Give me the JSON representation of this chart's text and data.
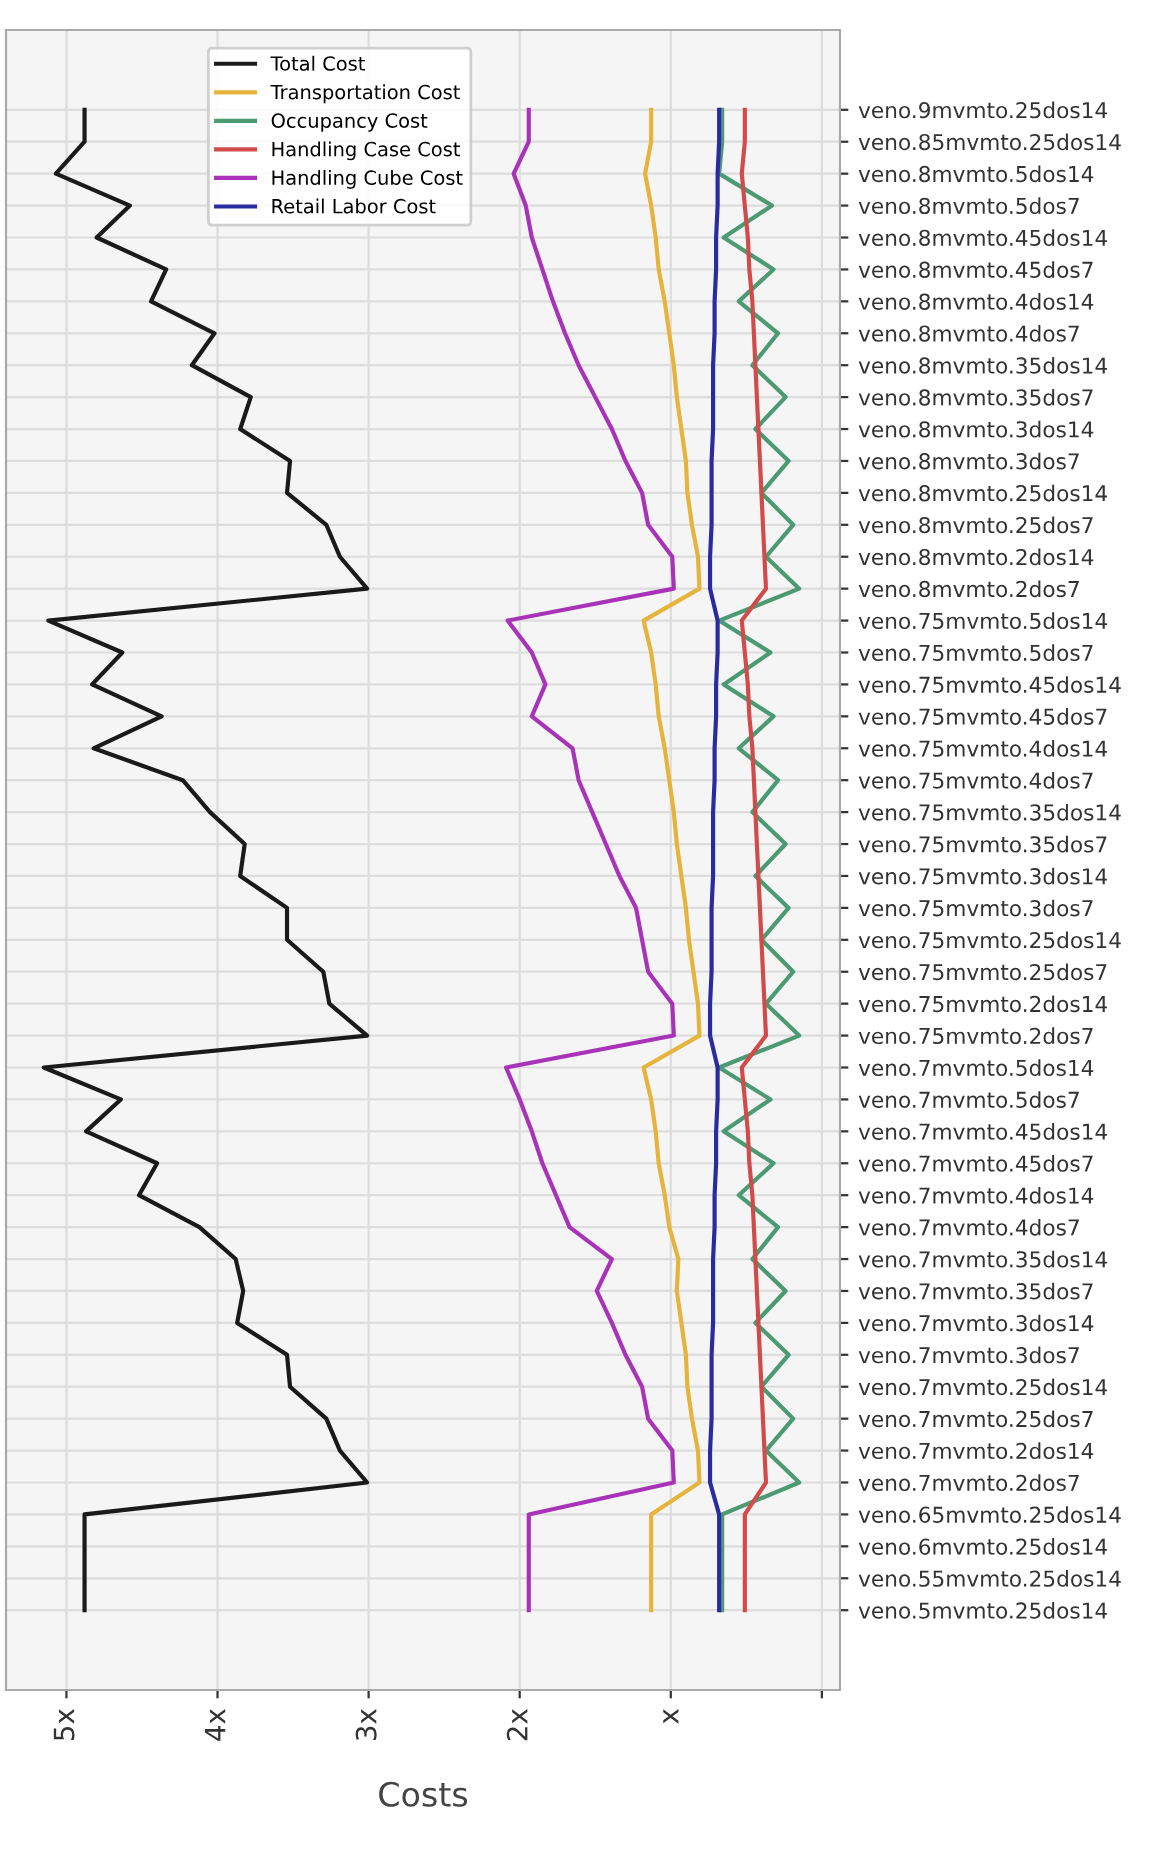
{
  "chart_data": {
    "type": "line",
    "orientation": "horizontal",
    "xlabel": "Costs",
    "categories": [
      "veno.9mvmto.25dos14",
      "veno.85mvmto.25dos14",
      "veno.8mvmto.5dos14",
      "veno.8mvmto.5dos7",
      "veno.8mvmto.45dos14",
      "veno.8mvmto.45dos7",
      "veno.8mvmto.4dos14",
      "veno.8mvmto.4dos7",
      "veno.8mvmto.35dos14",
      "veno.8mvmto.35dos7",
      "veno.8mvmto.3dos14",
      "veno.8mvmto.3dos7",
      "veno.8mvmto.25dos14",
      "veno.8mvmto.25dos7",
      "veno.8mvmto.2dos14",
      "veno.8mvmto.2dos7",
      "veno.75mvmto.5dos14",
      "veno.75mvmto.5dos7",
      "veno.75mvmto.45dos14",
      "veno.75mvmto.45dos7",
      "veno.75mvmto.4dos14",
      "veno.75mvmto.4dos7",
      "veno.75mvmto.35dos14",
      "veno.75mvmto.35dos7",
      "veno.75mvmto.3dos14",
      "veno.75mvmto.3dos7",
      "veno.75mvmto.25dos14",
      "veno.75mvmto.25dos7",
      "veno.75mvmto.2dos14",
      "veno.75mvmto.2dos7",
      "veno.7mvmto.5dos14",
      "veno.7mvmto.5dos7",
      "veno.7mvmto.45dos14",
      "veno.7mvmto.45dos7",
      "veno.7mvmto.4dos14",
      "veno.7mvmto.4dos7",
      "veno.7mvmto.35dos14",
      "veno.7mvmto.35dos7",
      "veno.7mvmto.3dos14",
      "veno.7mvmto.3dos7",
      "veno.7mvmto.25dos14",
      "veno.7mvmto.25dos7",
      "veno.7mvmto.2dos14",
      "veno.7mvmto.2dos7",
      "veno.65mvmto.25dos14",
      "veno.6mvmto.25dos14",
      "veno.55mvmto.25dos14",
      "veno.5mvmto.25dos14"
    ],
    "series": [
      {
        "name": "Total Cost",
        "color": "#1a1a1a",
        "values": [
          4.88,
          4.88,
          5.07,
          4.58,
          4.8,
          4.34,
          4.44,
          4.02,
          4.17,
          3.78,
          3.85,
          3.52,
          3.54,
          3.28,
          3.19,
          3.01,
          5.12,
          4.63,
          4.83,
          4.37,
          4.82,
          4.23,
          4.05,
          3.82,
          3.85,
          3.54,
          3.54,
          3.3,
          3.26,
          3.01,
          5.15,
          4.64,
          4.87,
          4.4,
          4.52,
          4.12,
          3.88,
          3.83,
          3.87,
          3.54,
          3.52,
          3.28,
          3.19,
          3.01,
          4.88,
          4.88,
          4.88,
          4.88
        ]
      },
      {
        "name": "Transportation Cost",
        "color": "#e6b33c",
        "values": [
          1.13,
          1.13,
          1.17,
          1.13,
          1.1,
          1.08,
          1.04,
          1.01,
          0.98,
          0.96,
          0.93,
          0.9,
          0.89,
          0.86,
          0.82,
          0.81,
          1.18,
          1.13,
          1.1,
          1.08,
          1.04,
          1.01,
          0.98,
          0.96,
          0.93,
          0.9,
          0.88,
          0.85,
          0.82,
          0.81,
          1.18,
          1.13,
          1.1,
          1.08,
          1.04,
          1.01,
          0.95,
          0.96,
          0.93,
          0.9,
          0.89,
          0.86,
          0.82,
          0.81,
          1.13,
          1.13,
          1.13,
          1.13
        ]
      },
      {
        "name": "Occupancy Cost",
        "color": "#4c9a73",
        "values": [
          0.66,
          0.66,
          0.68,
          0.33,
          0.65,
          0.32,
          0.55,
          0.29,
          0.46,
          0.24,
          0.44,
          0.22,
          0.4,
          0.19,
          0.37,
          0.15,
          0.68,
          0.34,
          0.65,
          0.32,
          0.55,
          0.29,
          0.46,
          0.24,
          0.44,
          0.22,
          0.4,
          0.19,
          0.37,
          0.15,
          0.68,
          0.34,
          0.65,
          0.32,
          0.55,
          0.29,
          0.46,
          0.24,
          0.44,
          0.22,
          0.4,
          0.19,
          0.37,
          0.15,
          0.66,
          0.66,
          0.66,
          0.66
        ]
      },
      {
        "name": "Handling Case Cost",
        "color": "#d24b4b",
        "values": [
          0.51,
          0.51,
          0.53,
          0.51,
          0.49,
          0.48,
          0.46,
          0.45,
          0.44,
          0.43,
          0.42,
          0.41,
          0.4,
          0.39,
          0.38,
          0.37,
          0.53,
          0.51,
          0.49,
          0.48,
          0.46,
          0.45,
          0.44,
          0.43,
          0.42,
          0.41,
          0.4,
          0.39,
          0.38,
          0.37,
          0.53,
          0.51,
          0.49,
          0.48,
          0.46,
          0.45,
          0.44,
          0.43,
          0.42,
          0.41,
          0.4,
          0.39,
          0.38,
          0.37,
          0.51,
          0.51,
          0.51,
          0.51
        ]
      },
      {
        "name": "Handling Cube Cost",
        "color": "#a833b9",
        "values": [
          1.94,
          1.94,
          2.04,
          1.96,
          1.92,
          1.85,
          1.78,
          1.7,
          1.61,
          1.5,
          1.39,
          1.3,
          1.19,
          1.15,
          0.99,
          0.98,
          2.08,
          1.92,
          1.83,
          1.92,
          1.65,
          1.61,
          1.52,
          1.43,
          1.34,
          1.23,
          1.19,
          1.15,
          0.99,
          0.98,
          2.09,
          2.0,
          1.92,
          1.85,
          1.76,
          1.67,
          1.39,
          1.49,
          1.39,
          1.3,
          1.19,
          1.15,
          0.99,
          0.98,
          1.94,
          1.94,
          1.94,
          1.94
        ]
      },
      {
        "name": "Retail Labor Cost",
        "color": "#2b2ba0",
        "values": [
          0.68,
          0.68,
          0.69,
          0.69,
          0.7,
          0.7,
          0.71,
          0.71,
          0.72,
          0.72,
          0.72,
          0.73,
          0.73,
          0.73,
          0.74,
          0.74,
          0.69,
          0.69,
          0.7,
          0.7,
          0.71,
          0.71,
          0.72,
          0.72,
          0.72,
          0.73,
          0.73,
          0.73,
          0.74,
          0.74,
          0.69,
          0.69,
          0.7,
          0.7,
          0.71,
          0.71,
          0.72,
          0.72,
          0.72,
          0.73,
          0.73,
          0.73,
          0.74,
          0.74,
          0.68,
          0.68,
          0.68,
          0.68
        ]
      }
    ],
    "xlim": [
      5.4,
      -0.12
    ],
    "xticks": [
      {
        "value": 5,
        "label": "5x"
      },
      {
        "value": 4,
        "label": "4x"
      },
      {
        "value": 3,
        "label": "3x"
      },
      {
        "value": 2,
        "label": "2x"
      },
      {
        "value": 1,
        "label": "x"
      },
      {
        "value": 0,
        "label": null
      }
    ],
    "grid": true,
    "legend": "top",
    "marker": "none",
    "line_style": "solid"
  }
}
